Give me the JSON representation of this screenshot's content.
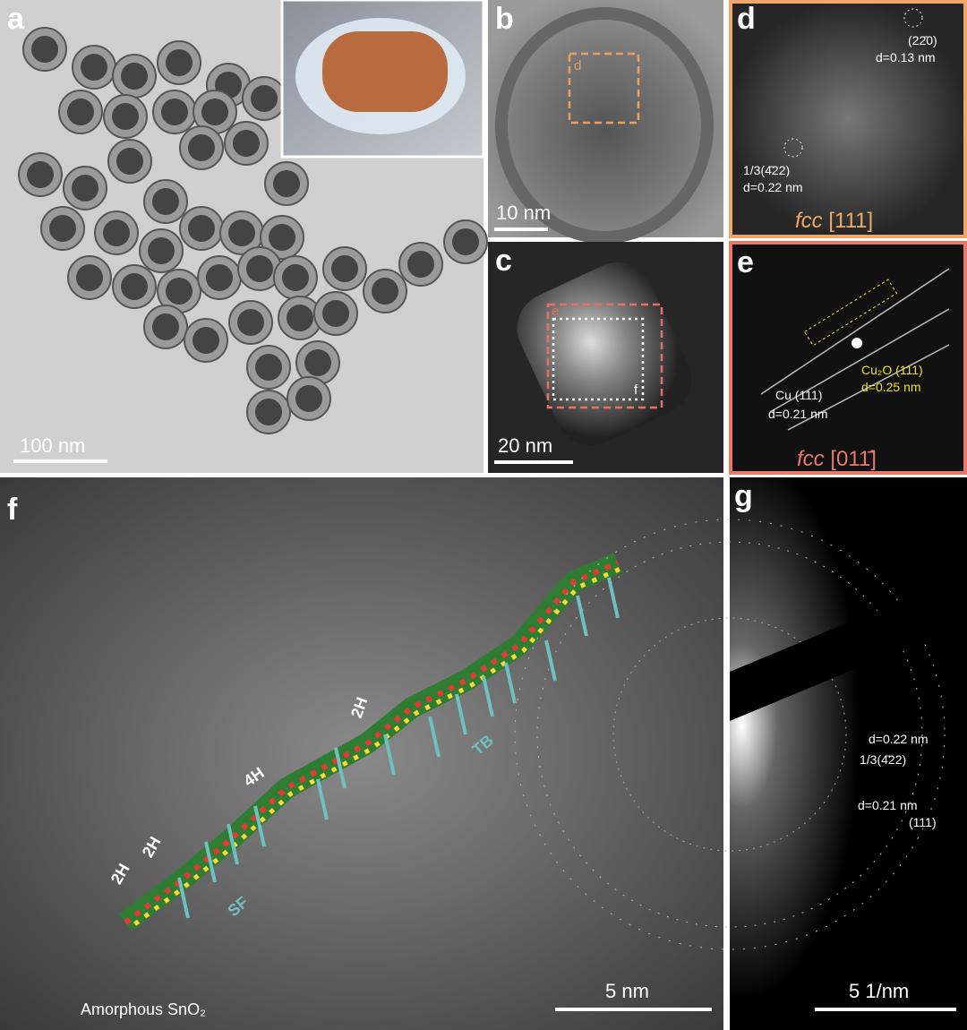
{
  "panels": {
    "a": {
      "label": "a",
      "scale_bar": "100 nm"
    },
    "b": {
      "label": "b",
      "box_label": "d",
      "scale_bar": "10 nm"
    },
    "c": {
      "label": "c",
      "box_labels": [
        "e",
        "f"
      ],
      "scale_bar": "20 nm"
    },
    "d": {
      "label": "d",
      "spots": [
        "(22̄0)",
        "d=0.13 nm",
        "1/3(4̄22)",
        "d=0.22 nm"
      ],
      "zone_axis": {
        "lattice": "fcc",
        "index": "[111]"
      }
    },
    "e": {
      "label": "e",
      "spots": [
        "Cu₂O (111)",
        "d=0.25 nm",
        "Cu (111)",
        "d=0.21 nm"
      ],
      "zone_axis": {
        "lattice": "fcc",
        "index": "[011̄]"
      }
    },
    "f": {
      "label": "f",
      "annotations": [
        "2H",
        "2H",
        "4H",
        "2H",
        "SF",
        "TB",
        "Amorphous SnO₂"
      ],
      "scale_bar": "5 nm"
    },
    "g": {
      "label": "g",
      "annotations": [
        "d=0.22 nm",
        "1/3(4̄22)",
        "d=0.21 nm",
        "(111)"
      ],
      "scale_bar": "5 1/nm"
    }
  }
}
